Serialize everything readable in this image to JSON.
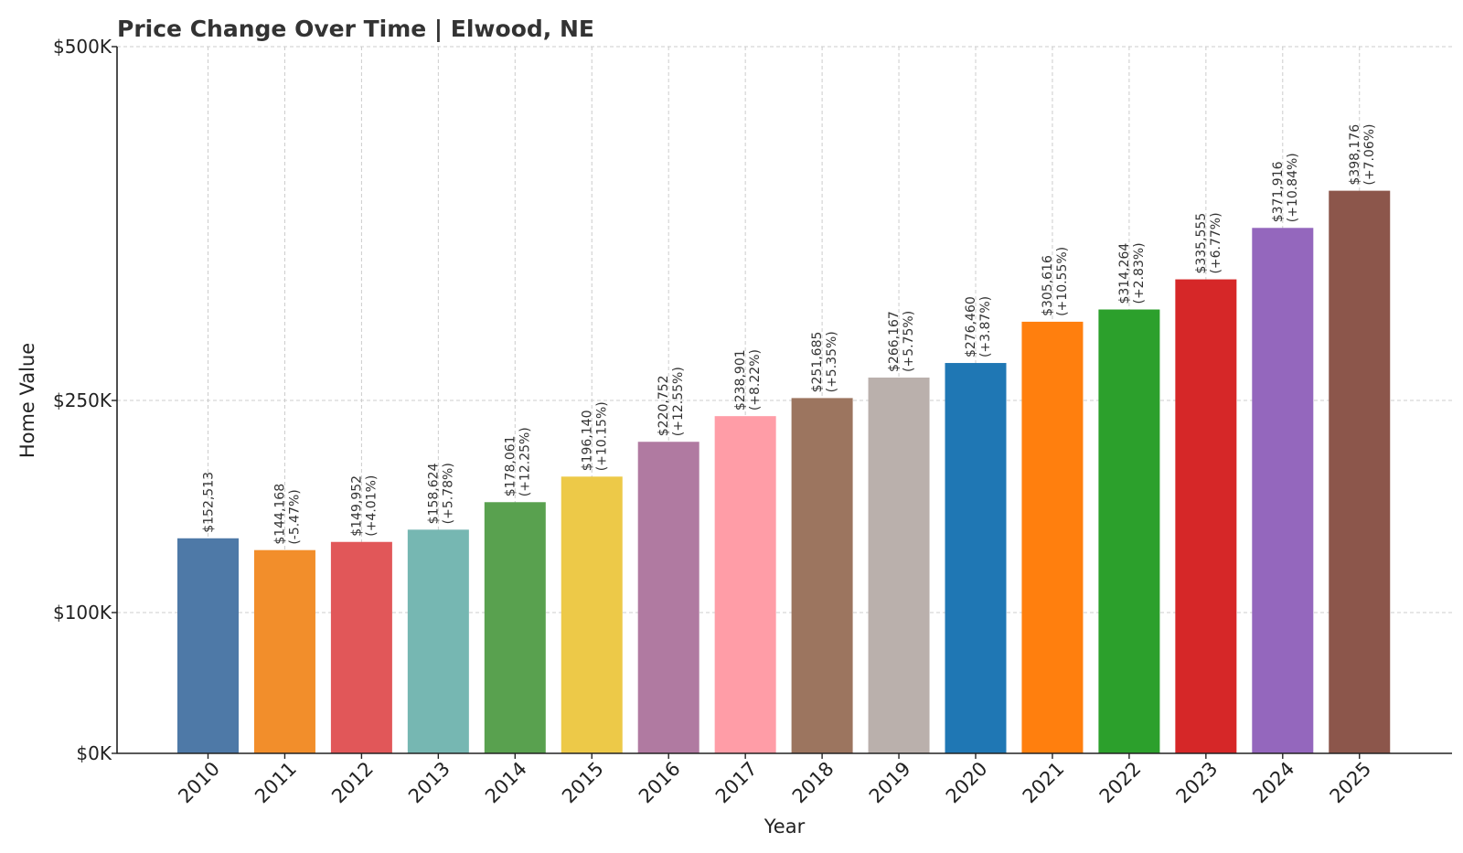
{
  "chart_data": {
    "type": "bar",
    "title": "Price Change Over Time | Elwood, NE",
    "xlabel": "Year",
    "ylabel": "Home Value",
    "categories": [
      "2010",
      "2011",
      "2012",
      "2013",
      "2014",
      "2015",
      "2016",
      "2017",
      "2018",
      "2019",
      "2020",
      "2021",
      "2022",
      "2023",
      "2024",
      "2025"
    ],
    "values": [
      152513,
      144168,
      149952,
      158624,
      178061,
      196140,
      220752,
      238901,
      251685,
      266167,
      276460,
      305616,
      314264,
      335555,
      371916,
      398176
    ],
    "value_labels": [
      "$152,513",
      "$144,168",
      "$149,952",
      "$158,624",
      "$178,061",
      "$196,140",
      "$220,752",
      "$238,901",
      "$251,685",
      "$266,167",
      "$276,460",
      "$305,616",
      "$314,264",
      "$335,555",
      "$371,916",
      "$398,176"
    ],
    "change_labels": [
      "",
      "(-5.47%)",
      "(+4.01%)",
      "(+5.78%)",
      "(+12.25%)",
      "(+10.15%)",
      "(+12.55%)",
      "(+8.22%)",
      "(+5.35%)",
      "(+5.75%)",
      "(+3.87%)",
      "(+10.55%)",
      "(+2.83%)",
      "(+6.77%)",
      "(+10.84%)",
      "(+7.06%)"
    ],
    "colors": [
      "#4e79a7",
      "#f28e2b",
      "#e15759",
      "#76b7b2",
      "#59a14f",
      "#edc948",
      "#b07aa1",
      "#ff9da7",
      "#9c755f",
      "#bab0ac",
      "#1f77b4",
      "#ff7f0e",
      "#2ca02c",
      "#d62728",
      "#9467bd",
      "#8c564b"
    ],
    "yscale": "piecewise",
    "yticks": [
      0,
      100000,
      250000,
      500000
    ],
    "ytick_labels": [
      "$0K",
      "$100K",
      "$250K",
      "$500K"
    ],
    "ylim": [
      0,
      500000
    ],
    "grid": true
  }
}
